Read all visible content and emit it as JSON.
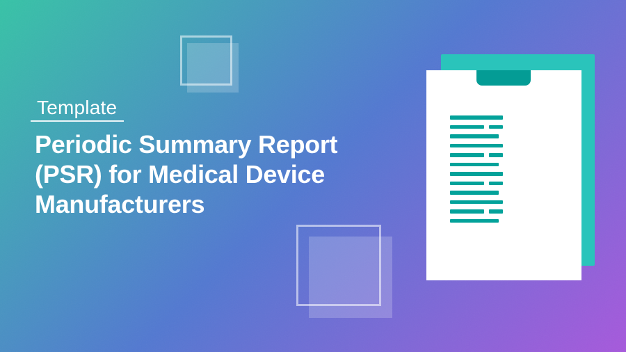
{
  "badge": {
    "label": "Template"
  },
  "hero": {
    "title_lines": [
      "Periodic Summary Report",
      "(PSR) for Medical Device",
      "Manufacturers"
    ]
  },
  "illustration": {
    "name": "clipboard-document",
    "doc_line_groups": 4,
    "doc_line_pattern": [
      "full",
      "split",
      "medium"
    ]
  },
  "colors": {
    "bg_gradient_start": "#36c3a6",
    "bg_gradient_mid": "#5278d1",
    "bg_gradient_end": "#a658dc",
    "board": "#2ac4bb",
    "clip": "#049c95",
    "paper": "#ffffff",
    "doc_line": "#03a29a",
    "text": "#ffffff",
    "decor_border": "rgba(255,255,255,0.55)",
    "decor_fill": "rgba(255,255,255,0.20)"
  }
}
